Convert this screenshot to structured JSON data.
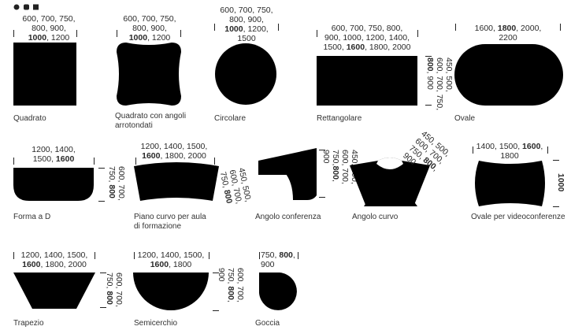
{
  "header_icons": [
    "circle-icon",
    "rounded-square-icon",
    "square-icon"
  ],
  "shapes": [
    {
      "id": "quadrato",
      "label": "Quadrato",
      "dims_top": [
        [
          {
            "t": "600, 700, 750,",
            "b": false
          }
        ],
        [
          {
            "t": "800, 900,",
            "b": false
          }
        ],
        [
          {
            "t": "1000",
            "b": true
          },
          {
            "t": ", 1200",
            "b": false
          }
        ]
      ]
    },
    {
      "id": "quadrato-angoli",
      "label": "Quadrato con angoli arrotondati",
      "label_lines": [
        "Quadrato con angoli",
        "arrotondati"
      ],
      "dims_top": [
        [
          {
            "t": "600, 700, 750,",
            "b": false
          }
        ],
        [
          {
            "t": "800, 900,",
            "b": false
          }
        ],
        [
          {
            "t": "1000",
            "b": true
          },
          {
            "t": ", 1200",
            "b": false
          }
        ]
      ]
    },
    {
      "id": "circolare",
      "label": "Circolare",
      "dims_top": [
        [
          {
            "t": "600, 700, 750,",
            "b": false
          }
        ],
        [
          {
            "t": "800, 900,",
            "b": false
          }
        ],
        [
          {
            "t": "1000",
            "b": true
          },
          {
            "t": ", 1200,",
            "b": false
          }
        ],
        [
          {
            "t": "1500",
            "b": false
          }
        ]
      ]
    },
    {
      "id": "rettangolare",
      "label": "Rettangolare",
      "dims_top": [
        [
          {
            "t": "600, 700, 750, 800,",
            "b": false
          }
        ],
        [
          {
            "t": "900, 1000, 1200, 1400,",
            "b": false
          }
        ],
        [
          {
            "t": "1500, ",
            "b": false
          },
          {
            "t": "1600",
            "b": true
          },
          {
            "t": ", 1800, 2000",
            "b": false
          }
        ]
      ],
      "dims_side": [
        [
          {
            "t": "450, 500,",
            "b": false
          }
        ],
        [
          {
            "t": "600, 700, 750,",
            "b": false
          }
        ],
        [
          {
            "t": "800",
            "b": true
          },
          {
            "t": ", 900",
            "b": false
          }
        ]
      ]
    },
    {
      "id": "ovale",
      "label": "Ovale",
      "dims_top": [
        [
          {
            "t": "1600, ",
            "b": false
          },
          {
            "t": "1800",
            "b": true
          },
          {
            "t": ", 2000,",
            "b": false
          }
        ],
        [
          {
            "t": "2200",
            "b": false
          }
        ]
      ]
    },
    {
      "id": "forma-d",
      "label": "Forma a D",
      "dims_top": [
        [
          {
            "t": "1200, 1400,",
            "b": false
          }
        ],
        [
          {
            "t": "1500, ",
            "b": false
          },
          {
            "t": "1600",
            "b": true
          }
        ]
      ],
      "dims_side": [
        [
          {
            "t": "600, 700,",
            "b": false
          }
        ],
        [
          {
            "t": "750, ",
            "b": false
          },
          {
            "t": "800",
            "b": true
          }
        ]
      ]
    },
    {
      "id": "piano-curvo",
      "label": "Piano curvo per aula di formazione",
      "label_lines": [
        "Piano curvo per aula",
        "di formazione"
      ],
      "dims_top": [
        [
          {
            "t": "1200, 1400, 1500,",
            "b": false
          }
        ],
        [
          {
            "t": "1600",
            "b": true
          },
          {
            "t": ", 1800, 2000",
            "b": false
          }
        ]
      ],
      "dims_side": [
        [
          {
            "t": "450, 500,",
            "b": false
          }
        ],
        [
          {
            "t": "600, 700,",
            "b": false
          }
        ],
        [
          {
            "t": "750, ",
            "b": false
          },
          {
            "t": "800",
            "b": true
          }
        ]
      ]
    },
    {
      "id": "angolo-conferenza",
      "label": "Angolo conferenza",
      "dims_side": [
        [
          {
            "t": "450, 500,",
            "b": false
          }
        ],
        [
          {
            "t": "600, 700,",
            "b": false
          }
        ],
        [
          {
            "t": "750,",
            "b": false
          },
          {
            "t": "800",
            "b": true
          },
          {
            "t": ",",
            "b": false
          }
        ],
        [
          {
            "t": "900",
            "b": false
          }
        ]
      ]
    },
    {
      "id": "angolo-curvo",
      "label": "Angolo curvo",
      "dims_side": [
        [
          {
            "t": "450, 500,",
            "b": false
          }
        ],
        [
          {
            "t": "600, 700,",
            "b": false
          }
        ],
        [
          {
            "t": "750, ",
            "b": false
          },
          {
            "t": "800",
            "b": true
          },
          {
            "t": ",",
            "b": false
          }
        ],
        [
          {
            "t": "900",
            "b": false
          }
        ]
      ]
    },
    {
      "id": "ovale-video",
      "label": "Ovale per videoconferenze",
      "dims_top": [
        [
          {
            "t": "1400, 1500, ",
            "b": false
          },
          {
            "t": "1600",
            "b": true
          },
          {
            "t": ",",
            "b": false
          }
        ],
        [
          {
            "t": "1800",
            "b": false
          }
        ]
      ],
      "dims_side": [
        [
          {
            "t": "1000",
            "b": true
          }
        ]
      ]
    },
    {
      "id": "trapezio",
      "label": "Trapezio",
      "dims_top": [
        [
          {
            "t": "1200, 1400, 1500,",
            "b": false
          }
        ],
        [
          {
            "t": "1600",
            "b": true
          },
          {
            "t": ", 1800, 2000",
            "b": false
          }
        ]
      ],
      "dims_side": [
        [
          {
            "t": "600, 700,",
            "b": false
          }
        ],
        [
          {
            "t": "750, ",
            "b": false
          },
          {
            "t": "800",
            "b": true
          }
        ]
      ]
    },
    {
      "id": "semicerchio",
      "label": "Semicerchio",
      "dims_top": [
        [
          {
            "t": "1200, 1400, 1500,",
            "b": false
          }
        ],
        [
          {
            "t": "1600",
            "b": true
          },
          {
            "t": ", 1800",
            "b": false
          }
        ]
      ],
      "dims_side": [
        [
          {
            "t": "600, 700,",
            "b": false
          }
        ],
        [
          {
            "t": "750, ",
            "b": false
          },
          {
            "t": "800",
            "b": true
          },
          {
            "t": ",",
            "b": false
          }
        ],
        [
          {
            "t": "900",
            "b": false
          }
        ]
      ]
    },
    {
      "id": "goccia",
      "label": "Goccia",
      "dims_top": [
        [
          {
            "t": "750, ",
            "b": false
          },
          {
            "t": "800",
            "b": true
          },
          {
            "t": ",",
            "b": false
          }
        ],
        [
          {
            "t": "900",
            "b": false
          }
        ]
      ]
    }
  ]
}
